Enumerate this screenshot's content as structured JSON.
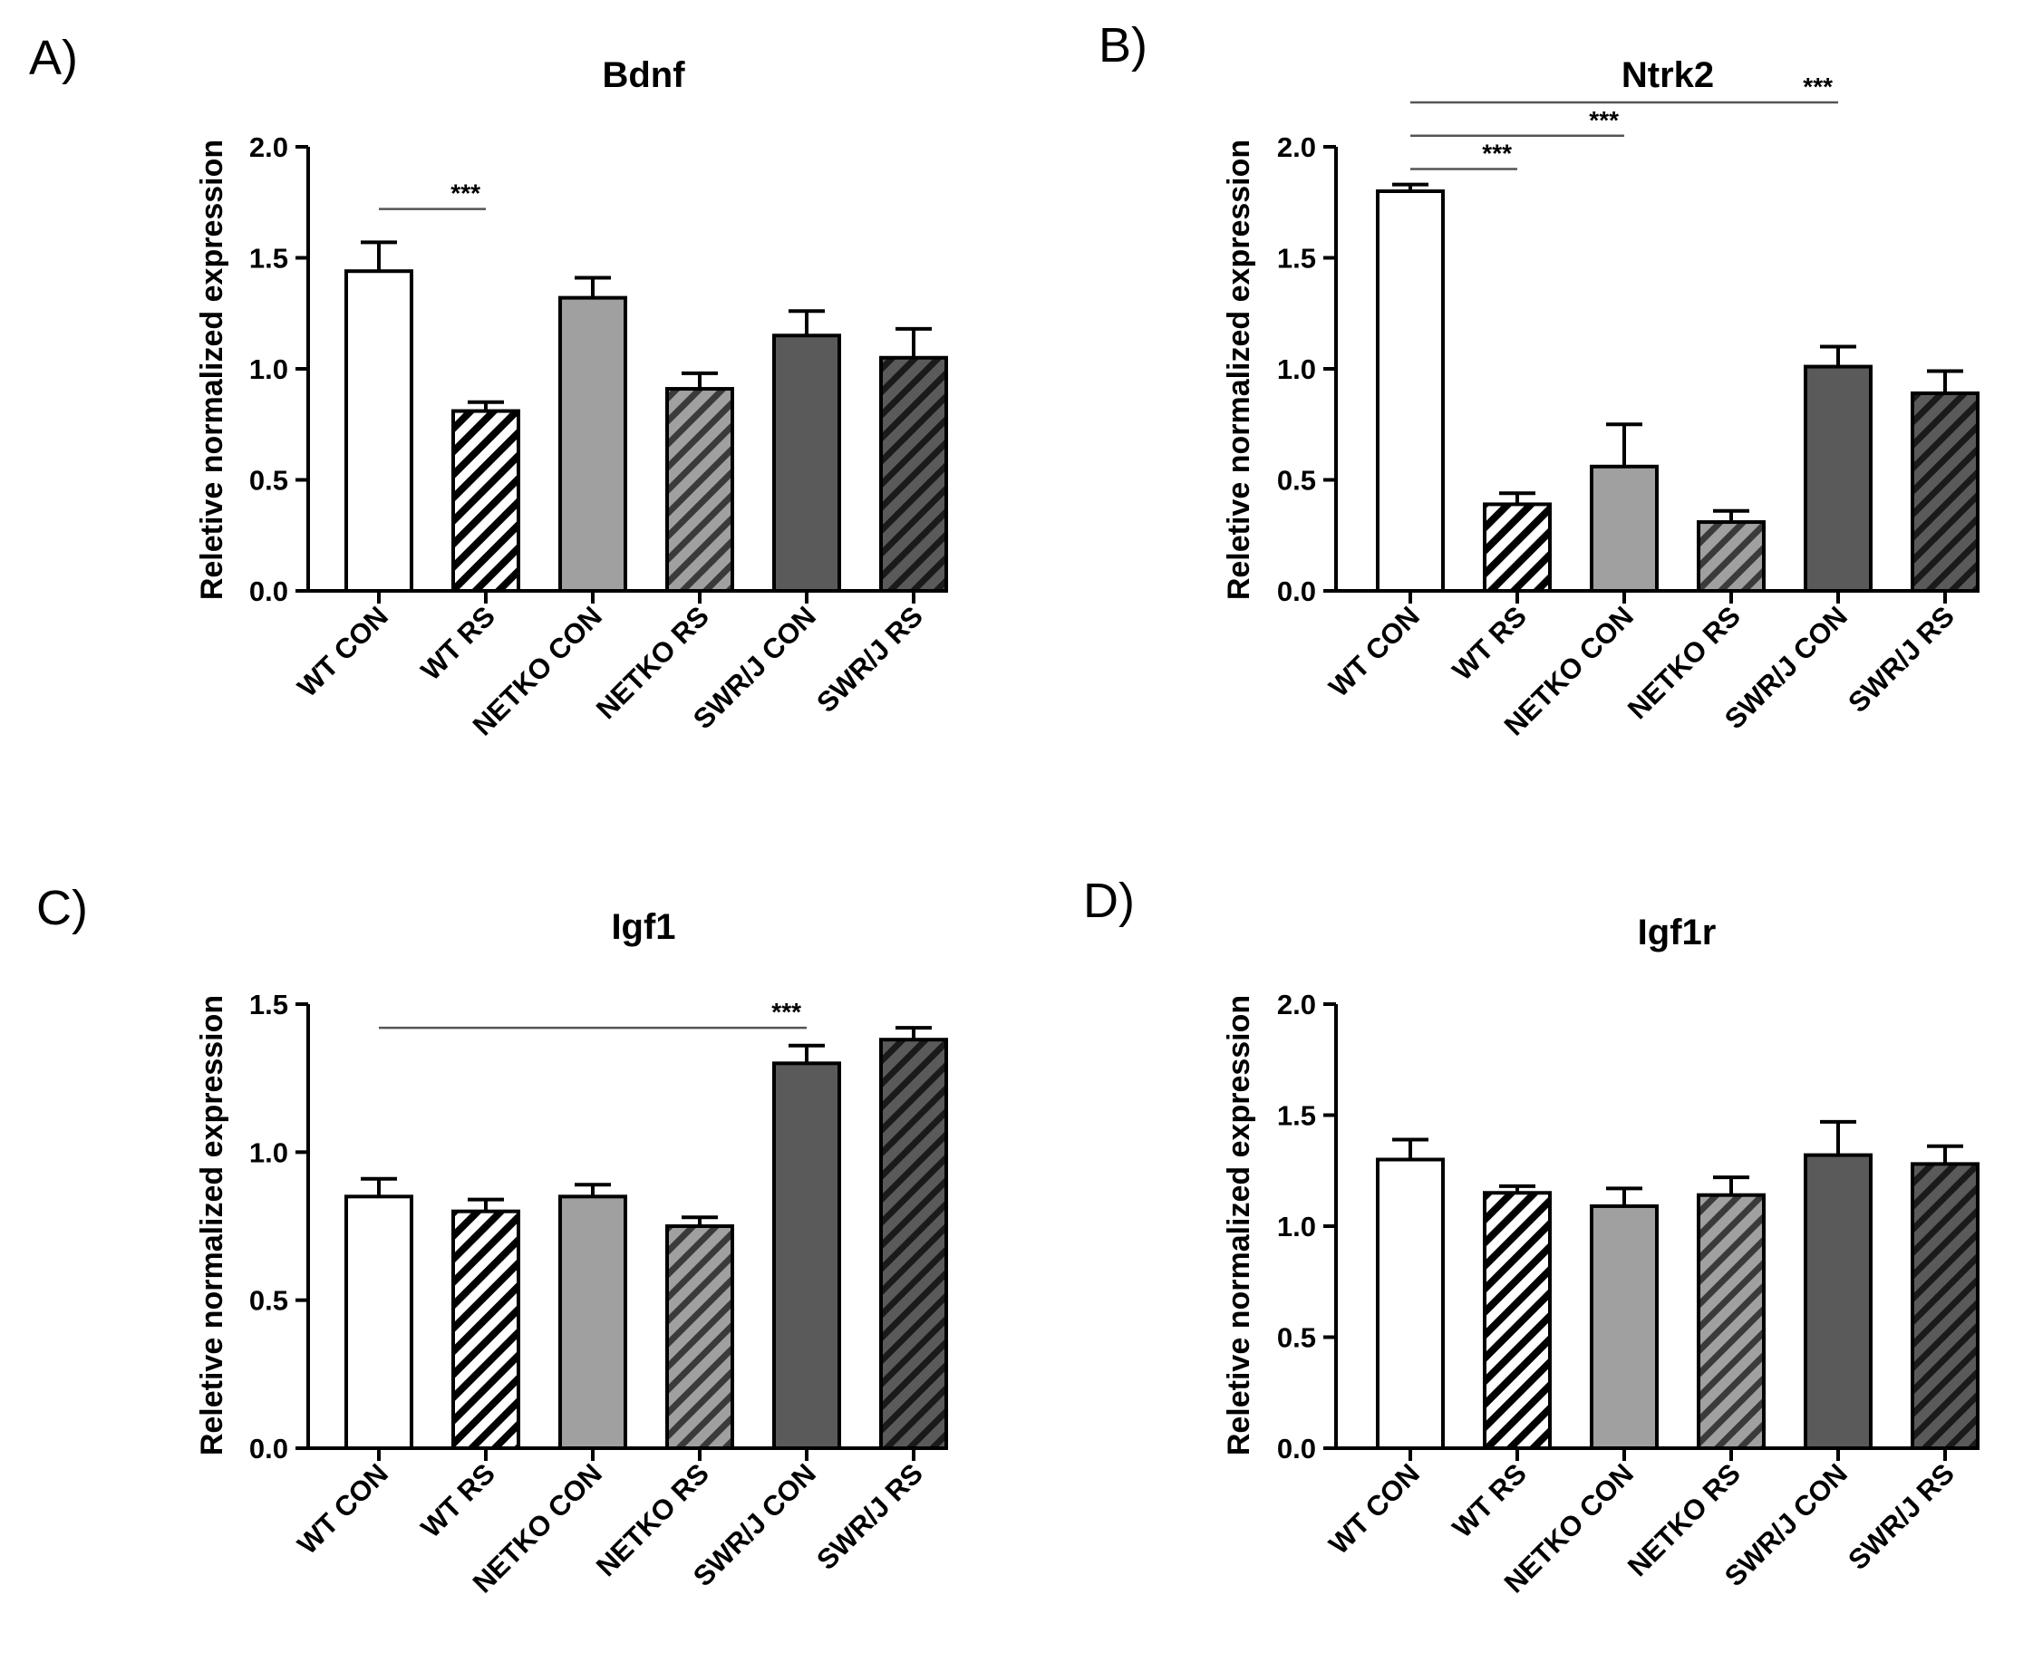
{
  "chart_data": [
    {
      "type": "bar",
      "panel": "A)",
      "title": "Bdnf",
      "ylabel": "Reletive normalized expression",
      "xlabel": "",
      "categories": [
        "WT CON",
        "WT RS",
        "NETKO CON",
        "NETKO RS",
        "SWR/J CON",
        "SWR/J RS"
      ],
      "values": [
        1.44,
        0.81,
        1.32,
        0.91,
        1.15,
        1.05
      ],
      "errors": [
        0.13,
        0.04,
        0.09,
        0.07,
        0.11,
        0.13
      ],
      "ylim": [
        0,
        2.0
      ],
      "yticks": [
        "0.0",
        "0.5",
        "1.0",
        "1.5",
        "2.0"
      ],
      "significance": [
        {
          "from": 0,
          "to": 1,
          "label": "***",
          "y": 1.72
        }
      ]
    },
    {
      "type": "bar",
      "panel": "B)",
      "title": "Ntrk2",
      "ylabel": "Reletive normalized expression",
      "xlabel": "",
      "categories": [
        "WT CON",
        "WT RS",
        "NETKO CON",
        "NETKO RS",
        "SWR/J CON",
        "SWR/J RS"
      ],
      "values": [
        1.8,
        0.39,
        0.56,
        0.31,
        1.01,
        0.89
      ],
      "errors": [
        0.03,
        0.05,
        0.19,
        0.05,
        0.09,
        0.1
      ],
      "ylim": [
        0,
        2.0
      ],
      "yticks": [
        "0.0",
        "0.5",
        "1.0",
        "1.5",
        "2.0"
      ],
      "significance": [
        {
          "from": 0,
          "to": 1,
          "label": "***",
          "y": 1.9
        },
        {
          "from": 0,
          "to": 2,
          "label": "***",
          "y": 2.05
        },
        {
          "from": 0,
          "to": 4,
          "label": "***",
          "y": 2.2
        }
      ]
    },
    {
      "type": "bar",
      "panel": "C)",
      "title": "Igf1",
      "ylabel": "Reletive normalized expression",
      "xlabel": "",
      "categories": [
        "WT CON",
        "WT RS",
        "NETKO CON",
        "NETKO RS",
        "SWR/J CON",
        "SWR/J RS"
      ],
      "values": [
        0.85,
        0.8,
        0.85,
        0.75,
        1.3,
        1.38
      ],
      "errors": [
        0.06,
        0.04,
        0.04,
        0.03,
        0.06,
        0.04
      ],
      "ylim": [
        0,
        1.5
      ],
      "yticks": [
        "0.0",
        "0.5",
        "1.0",
        "1.5"
      ],
      "significance": [
        {
          "from": 0,
          "to": 4,
          "label": "***",
          "y": 1.42
        }
      ]
    },
    {
      "type": "bar",
      "panel": "D)",
      "title": "Igf1r",
      "ylabel": "Reletive normalized expression",
      "xlabel": "",
      "categories": [
        "WT CON",
        "WT RS",
        "NETKO CON",
        "NETKO RS",
        "SWR/J CON",
        "SWR/J RS"
      ],
      "values": [
        1.3,
        1.15,
        1.09,
        1.14,
        1.32,
        1.28
      ],
      "errors": [
        0.09,
        0.03,
        0.08,
        0.08,
        0.15,
        0.08
      ],
      "ylim": [
        0,
        2.0
      ],
      "yticks": [
        "0.0",
        "0.5",
        "1.0",
        "1.5",
        "2.0"
      ],
      "significance": []
    }
  ],
  "bar_styles": [
    {
      "fill": "#ffffff",
      "hatch": false,
      "hatch_color": ""
    },
    {
      "fill": "#ffffff",
      "hatch": true,
      "hatch_color": "#000000"
    },
    {
      "fill": "#a0a0a0",
      "hatch": false,
      "hatch_color": ""
    },
    {
      "fill": "#a0a0a0",
      "hatch": true,
      "hatch_color": "#3a3a3a"
    },
    {
      "fill": "#5a5a5a",
      "hatch": false,
      "hatch_color": ""
    },
    {
      "fill": "#5a5a5a",
      "hatch": true,
      "hatch_color": "#1a1a1a"
    }
  ]
}
